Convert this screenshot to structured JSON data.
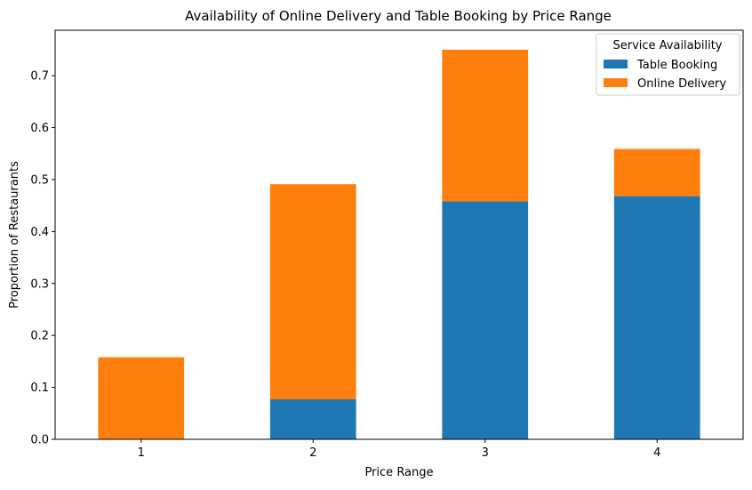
{
  "chart_data": {
    "type": "bar",
    "stacked": true,
    "title": "Availability of Online Delivery and Table Booking by Price Range",
    "xlabel": "Price Range",
    "ylabel": "Proportion of Restaurants",
    "categories": [
      "1",
      "2",
      "3",
      "4"
    ],
    "series": [
      {
        "name": "Table Booking",
        "color": "#1f77b4",
        "values": [
          0.0,
          0.077,
          0.458,
          0.468
        ]
      },
      {
        "name": "Online Delivery",
        "color": "#ff7f0e",
        "values": [
          0.158,
          0.414,
          0.292,
          0.091
        ]
      }
    ],
    "ylim": [
      0,
      0.7875
    ],
    "yticks": [
      0.0,
      0.1,
      0.2,
      0.3,
      0.4,
      0.5,
      0.6,
      0.7
    ],
    "ytick_labels": [
      "0.0",
      "0.1",
      "0.2",
      "0.3",
      "0.4",
      "0.5",
      "0.6",
      "0.7"
    ],
    "grid": false,
    "legend": {
      "title": "Service Availability",
      "position": "top-right"
    }
  }
}
